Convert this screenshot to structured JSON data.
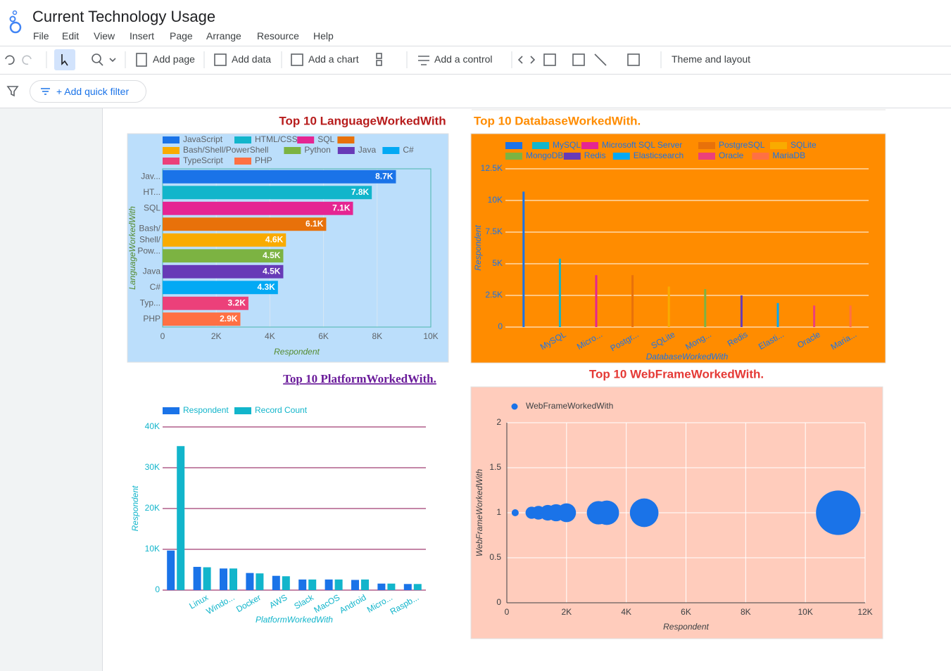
{
  "app": {
    "title": "Current Technology Usage",
    "menu": [
      "File",
      "Edit",
      "View",
      "Insert",
      "Page",
      "Arrange",
      "Resource",
      "Help"
    ],
    "toolbar": [
      "Add page",
      "Add data",
      "Add a chart",
      "Add a control",
      "Theme and layout"
    ],
    "filter": "+ Add quick filter"
  },
  "chart_data": [
    {
      "type": "bar",
      "horizontal": true,
      "title": "Top 10 LanguageWorkedWith",
      "categories": [
        "Jav...",
        "HT...",
        "SQL",
        null,
        "Bash/Shell/Pow...",
        null,
        "Java",
        "C#",
        "Typ...",
        "PHP"
      ],
      "legend": [
        "JavaScript",
        "HTML/CSS",
        "SQL",
        null,
        "Bash/Shell/PowerShell",
        "Python",
        "Java",
        "C#",
        "TypeScript",
        "PHP"
      ],
      "values": [
        8700,
        7800,
        7100,
        6100,
        4600,
        4500,
        4500,
        4300,
        3200,
        2900
      ],
      "value_labels": [
        "8.7K",
        "7.8K",
        "7.1K",
        "6.1K",
        "4.6K",
        "4.5K",
        "4.5K",
        "4.3K",
        "3.2K",
        "2.9K"
      ],
      "colors": [
        "#1a73e8",
        "#12b5cb",
        "#e52592",
        "#e8710a",
        "#f9ab00",
        "#7cb342",
        "#673ab7",
        "#03a9f4",
        "#ec407a",
        "#ff7043"
      ],
      "xlim": [
        0,
        10000
      ],
      "xticks": [
        0,
        {
          "value": 2000,
          "label": "2K"
        },
        {
          "value": 4000,
          "label": "4K"
        },
        {
          "value": 6000,
          "label": "6K"
        },
        {
          "value": 8000,
          "label": "8K"
        },
        {
          "value": 10000,
          "label": "10K"
        }
      ],
      "xlabel": "Respondent",
      "ylabel": "LanguageWorkedWith",
      "grid": true,
      "background": "#bbdefb"
    },
    {
      "type": "bar",
      "horizontal": false,
      "title": "Top 10 DatabaseWorkedWith.",
      "categories": [
        null,
        "MySQL",
        "Micro...",
        "Postgr...",
        "SQLite",
        "Mong...",
        "Redis",
        "Elasti...",
        "Oracle",
        "Maria..."
      ],
      "legend": [
        null,
        "MySQL",
        "Microsoft SQL Server",
        "PostgreSQL",
        "SQLite",
        "MongoDB",
        "Redis",
        "Elasticsearch",
        "Oracle",
        "MariaDB"
      ],
      "values": [
        10700,
        5400,
        4100,
        4100,
        3200,
        3000,
        2500,
        1900,
        1700,
        1700
      ],
      "colors": [
        "#1a73e8",
        "#12b5cb",
        "#e52592",
        "#e8710a",
        "#f9ab00",
        "#7cb342",
        "#673ab7",
        "#03a9f4",
        "#ec407a",
        "#ff7043"
      ],
      "ylim": [
        0,
        12500
      ],
      "yticks": [
        0,
        {
          "value": 2500,
          "label": "2.5K"
        },
        {
          "value": 5000,
          "label": "5K"
        },
        {
          "value": 7500,
          "label": "7.5K"
        },
        {
          "value": 10000,
          "label": "10K"
        },
        {
          "value": 12500,
          "label": "12.5K"
        }
      ],
      "xlabel": "DatabaseWorkedWith",
      "ylabel": "Respondent",
      "grid": true,
      "background": "#ff8c00"
    },
    {
      "type": "bar",
      "horizontal": false,
      "title": "Top 10 PlatformWorkedWith.",
      "categories": [
        null,
        "Linux",
        "Windo...",
        "Docker",
        "AWS",
        "Slack",
        "MacOS",
        "Android",
        "Micro...",
        "Raspb..."
      ],
      "series": [
        {
          "name": "Respondent",
          "color": "#1a73e8",
          "values": [
            9700,
            5700,
            5300,
            4200,
            3500,
            2600,
            2600,
            2500,
            1600,
            1500
          ]
        },
        {
          "name": "Record Count",
          "color": "#12b5cb",
          "values": [
            35300,
            5600,
            5300,
            4100,
            3400,
            2600,
            2600,
            2600,
            1600,
            1500
          ]
        }
      ],
      "ylim": [
        0,
        40000
      ],
      "yticks": [
        0,
        {
          "value": 10000,
          "label": "10K"
        },
        {
          "value": 20000,
          "label": "20K"
        },
        {
          "value": 30000,
          "label": "30K"
        },
        {
          "value": 40000,
          "label": "40K"
        }
      ],
      "xlabel": "PlatformWorkedWith",
      "ylabel": "Respondent",
      "grid": true
    },
    {
      "type": "bubble",
      "title": "Top 10 WebFrameWorkedWith.",
      "series": [
        {
          "name": "WebFrameWorkedWith",
          "color": "#1a73e8",
          "x": [
            280,
            830,
            1060,
            1370,
            1650,
            2000,
            3070,
            3350,
            4600,
            11100
          ],
          "values": [
            1,
            1,
            1,
            1,
            1,
            1,
            1,
            1,
            1,
            1
          ],
          "sizes": [
            280,
            830,
            1060,
            1370,
            1650,
            2000,
            3070,
            3350,
            4600,
            11100
          ]
        }
      ],
      "xlim": [
        0,
        12000
      ],
      "xticks": [
        0,
        {
          "value": 2000,
          "label": "2K"
        },
        {
          "value": 4000,
          "label": "4K"
        },
        {
          "value": 6000,
          "label": "6K"
        },
        {
          "value": 8000,
          "label": "8K"
        },
        {
          "value": 10000,
          "label": "10K"
        },
        {
          "value": 12000,
          "label": "12K"
        }
      ],
      "ylim": [
        0,
        2
      ],
      "yticks": [
        0,
        0.5,
        1,
        1.5,
        2
      ],
      "xlabel": "Respondent",
      "ylabel": "WebFrameWorkedWith",
      "grid": true,
      "background": "#ffccbc"
    }
  ]
}
